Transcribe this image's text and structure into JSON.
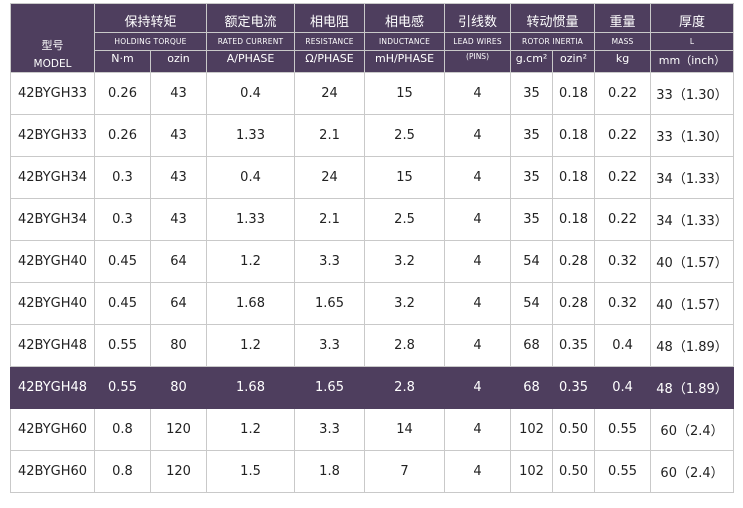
{
  "header": {
    "model_zh": "型号",
    "model_en": "MODEL",
    "torque_zh": "保持转矩",
    "torque_en": "HOLDING TORQUE",
    "torque_unit_nm": "N·m",
    "torque_unit_ozin": "ozin",
    "current_zh": "额定电流",
    "current_en": "RATED CURRENT",
    "current_unit": "A/PHASE",
    "resistance_zh": "相电阻",
    "resistance_en": "RESISTANCE",
    "resistance_unit": "Ω/PHASE",
    "inductance_zh": "相电感",
    "inductance_en": "INDUCTANCE",
    "inductance_unit": "mH/PHASE",
    "leads_zh": "引线数",
    "leads_en": "LEAD WIRES",
    "leads_unit": "(PINS)",
    "inertia_zh": "转动惯量",
    "inertia_en": "ROTOR INERTIA",
    "inertia_unit_gcm": "g.cm²",
    "inertia_unit_ozin": "ozin²",
    "mass_zh": "重量",
    "mass_en": "MASS",
    "mass_unit": "kg",
    "length_zh": "厚度",
    "length_en": "L",
    "length_unit": "mm（inch）"
  },
  "rows": [
    {
      "model": "42BYGH33",
      "torque_nm": "0.26",
      "torque_ozin": "43",
      "current": "0.4",
      "resistance": "24",
      "inductance": "15",
      "leads": "4",
      "inertia_gcm": "35",
      "inertia_ozin": "0.18",
      "mass": "0.22",
      "length": "33（1.30）"
    },
    {
      "model": "42BYGH33",
      "torque_nm": "0.26",
      "torque_ozin": "43",
      "current": "1.33",
      "resistance": "2.1",
      "inductance": "2.5",
      "leads": "4",
      "inertia_gcm": "35",
      "inertia_ozin": "0.18",
      "mass": "0.22",
      "length": "33（1.30）"
    },
    {
      "model": "42BYGH34",
      "torque_nm": "0.3",
      "torque_ozin": "43",
      "current": "0.4",
      "resistance": "24",
      "inductance": "15",
      "leads": "4",
      "inertia_gcm": "35",
      "inertia_ozin": "0.18",
      "mass": "0.22",
      "length": "34（1.33）"
    },
    {
      "model": "42BYGH34",
      "torque_nm": "0.3",
      "torque_ozin": "43",
      "current": "1.33",
      "resistance": "2.1",
      "inductance": "2.5",
      "leads": "4",
      "inertia_gcm": "35",
      "inertia_ozin": "0.18",
      "mass": "0.22",
      "length": "34（1.33）"
    },
    {
      "model": "42BYGH40",
      "torque_nm": "0.45",
      "torque_ozin": "64",
      "current": "1.2",
      "resistance": "3.3",
      "inductance": "3.2",
      "leads": "4",
      "inertia_gcm": "54",
      "inertia_ozin": "0.28",
      "mass": "0.32",
      "length": "40（1.57）"
    },
    {
      "model": "42BYGH40",
      "torque_nm": "0.45",
      "torque_ozin": "64",
      "current": "1.68",
      "resistance": "1.65",
      "inductance": "3.2",
      "leads": "4",
      "inertia_gcm": "54",
      "inertia_ozin": "0.28",
      "mass": "0.32",
      "length": "40（1.57）"
    },
    {
      "model": "42BYGH48",
      "torque_nm": "0.55",
      "torque_ozin": "80",
      "current": "1.2",
      "resistance": "3.3",
      "inductance": "2.8",
      "leads": "4",
      "inertia_gcm": "68",
      "inertia_ozin": "0.35",
      "mass": "0.4",
      "length": "48（1.89）"
    },
    {
      "model": "42BYGH48",
      "torque_nm": "0.55",
      "torque_ozin": "80",
      "current": "1.68",
      "resistance": "1.65",
      "inductance": "2.8",
      "leads": "4",
      "inertia_gcm": "68",
      "inertia_ozin": "0.35",
      "mass": "0.4",
      "length": "48（1.89）"
    },
    {
      "model": "42BYGH60",
      "torque_nm": "0.8",
      "torque_ozin": "120",
      "current": "1.2",
      "resistance": "3.3",
      "inductance": "14",
      "leads": "4",
      "inertia_gcm": "102",
      "inertia_ozin": "0.50",
      "mass": "0.55",
      "length": "60（2.4）"
    },
    {
      "model": "42BYGH60",
      "torque_nm": "0.8",
      "torque_ozin": "120",
      "current": "1.5",
      "resistance": "1.8",
      "inductance": "7",
      "leads": "4",
      "inertia_gcm": "102",
      "inertia_ozin": "0.50",
      "mass": "0.55",
      "length": "60（2.4）"
    }
  ],
  "highlighted_row": 7,
  "colors": {
    "header_bg": "#4e3e5e",
    "header_text": "#ffffff",
    "highlight_bg": "#4e3e5e",
    "border": "#c9c9c9",
    "body_text": "#222222"
  }
}
